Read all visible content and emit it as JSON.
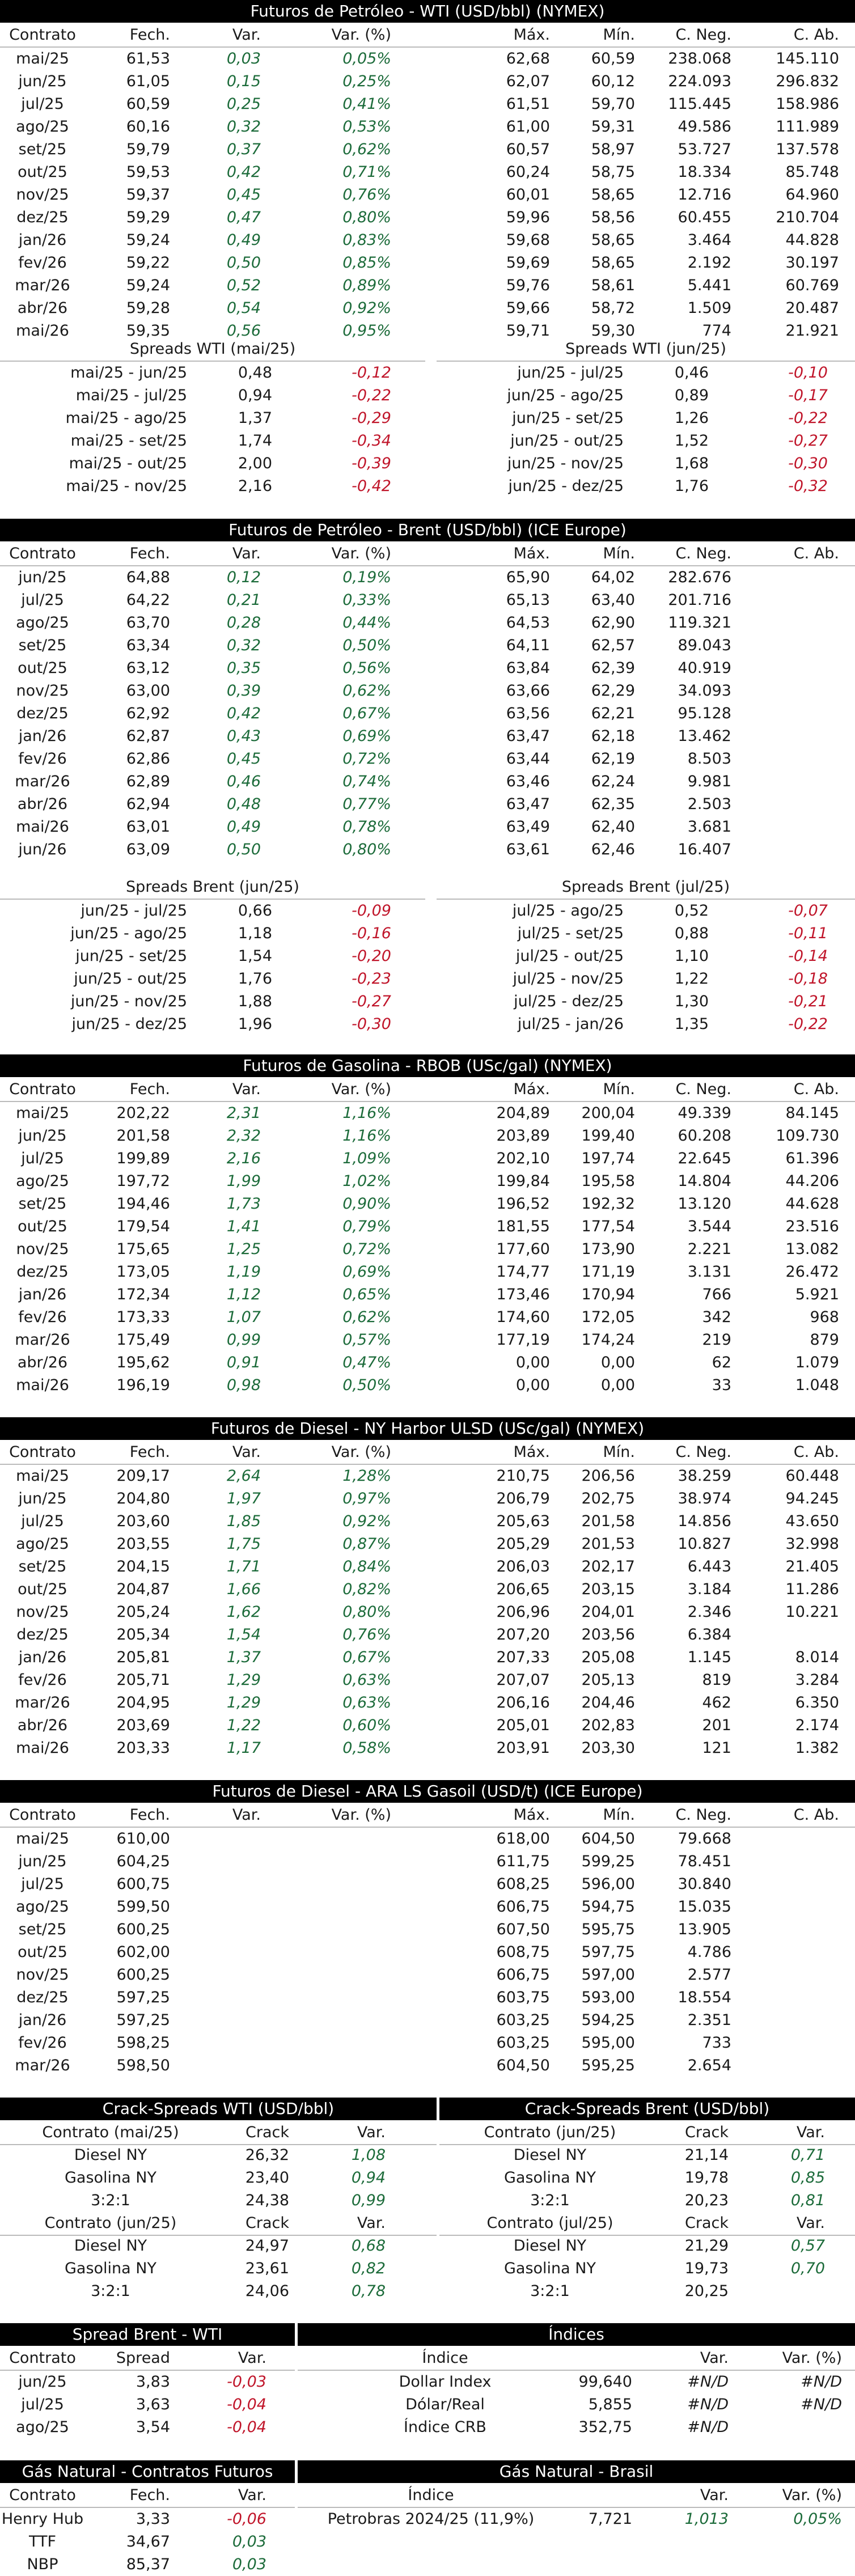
{
  "wti": {
    "title": "Futuros de Petróleo - WTI (USD/bbl) (NYMEX)",
    "headers": [
      "Contrato",
      "Fech.",
      "Var.",
      "Var. (%)",
      "Máx.",
      "Mín.",
      "C. Neg.",
      "C. Ab."
    ],
    "rows": [
      [
        "mai/25",
        "61,53",
        "0,03",
        "0,05%",
        "62,68",
        "60,59",
        "238.068",
        "145.110"
      ],
      [
        "jun/25",
        "61,05",
        "0,15",
        "0,25%",
        "62,07",
        "60,12",
        "224.093",
        "296.832"
      ],
      [
        "jul/25",
        "60,59",
        "0,25",
        "0,41%",
        "61,51",
        "59,70",
        "115.445",
        "158.986"
      ],
      [
        "ago/25",
        "60,16",
        "0,32",
        "0,53%",
        "61,00",
        "59,31",
        "49.586",
        "111.989"
      ],
      [
        "set/25",
        "59,79",
        "0,37",
        "0,62%",
        "60,57",
        "58,97",
        "53.727",
        "137.578"
      ],
      [
        "out/25",
        "59,53",
        "0,42",
        "0,71%",
        "60,24",
        "58,75",
        "18.334",
        "85.748"
      ],
      [
        "nov/25",
        "59,37",
        "0,45",
        "0,76%",
        "60,01",
        "58,65",
        "12.716",
        "64.960"
      ],
      [
        "dez/25",
        "59,29",
        "0,47",
        "0,80%",
        "59,96",
        "58,56",
        "60.455",
        "210.704"
      ],
      [
        "jan/26",
        "59,24",
        "0,49",
        "0,83%",
        "59,68",
        "58,65",
        "3.464",
        "44.828"
      ],
      [
        "fev/26",
        "59,22",
        "0,50",
        "0,85%",
        "59,69",
        "58,65",
        "2.192",
        "30.197"
      ],
      [
        "mar/26",
        "59,24",
        "0,52",
        "0,89%",
        "59,76",
        "58,61",
        "5.441",
        "60.769"
      ],
      [
        "abr/26",
        "59,28",
        "0,54",
        "0,92%",
        "59,66",
        "58,72",
        "1.509",
        "20.487"
      ],
      [
        "mai/26",
        "59,35",
        "0,56",
        "0,95%",
        "59,71",
        "59,30",
        "774",
        "21.921"
      ]
    ],
    "spreads_left_title": "Spreads WTI (mai/25)",
    "spreads_right_title": "Spreads WTI (jun/25)",
    "spreads_left": [
      [
        "mai/25 - jun/25",
        "0,48",
        "-0,12"
      ],
      [
        "mai/25 - jul/25",
        "0,94",
        "-0,22"
      ],
      [
        "mai/25 - ago/25",
        "1,37",
        "-0,29"
      ],
      [
        "mai/25 - set/25",
        "1,74",
        "-0,34"
      ],
      [
        "mai/25 - out/25",
        "2,00",
        "-0,39"
      ],
      [
        "mai/25 - nov/25",
        "2,16",
        "-0,42"
      ]
    ],
    "spreads_right": [
      [
        "jun/25 - jul/25",
        "0,46",
        "-0,10"
      ],
      [
        "jun/25 - ago/25",
        "0,89",
        "-0,17"
      ],
      [
        "jun/25 - set/25",
        "1,26",
        "-0,22"
      ],
      [
        "jun/25 - out/25",
        "1,52",
        "-0,27"
      ],
      [
        "jun/25 - nov/25",
        "1,68",
        "-0,30"
      ],
      [
        "jun/25 - dez/25",
        "1,76",
        "-0,32"
      ]
    ]
  },
  "brent": {
    "title": "Futuros de Petróleo - Brent (USD/bbl) (ICE Europe)",
    "headers": [
      "Contrato",
      "Fech.",
      "Var.",
      "Var. (%)",
      "Máx.",
      "Mín.",
      "C. Neg.",
      "C. Ab."
    ],
    "rows": [
      [
        "jun/25",
        "64,88",
        "0,12",
        "0,19%",
        "65,90",
        "64,02",
        "282.676",
        ""
      ],
      [
        "jul/25",
        "64,22",
        "0,21",
        "0,33%",
        "65,13",
        "63,40",
        "201.716",
        ""
      ],
      [
        "ago/25",
        "63,70",
        "0,28",
        "0,44%",
        "64,53",
        "62,90",
        "119.321",
        ""
      ],
      [
        "set/25",
        "63,34",
        "0,32",
        "0,50%",
        "64,11",
        "62,57",
        "89.043",
        ""
      ],
      [
        "out/25",
        "63,12",
        "0,35",
        "0,56%",
        "63,84",
        "62,39",
        "40.919",
        ""
      ],
      [
        "nov/25",
        "63,00",
        "0,39",
        "0,62%",
        "63,66",
        "62,29",
        "34.093",
        ""
      ],
      [
        "dez/25",
        "62,92",
        "0,42",
        "0,67%",
        "63,56",
        "62,21",
        "95.128",
        ""
      ],
      [
        "jan/26",
        "62,87",
        "0,43",
        "0,69%",
        "63,47",
        "62,18",
        "13.462",
        ""
      ],
      [
        "fev/26",
        "62,86",
        "0,45",
        "0,72%",
        "63,44",
        "62,19",
        "8.503",
        ""
      ],
      [
        "mar/26",
        "62,89",
        "0,46",
        "0,74%",
        "63,46",
        "62,24",
        "9.981",
        ""
      ],
      [
        "abr/26",
        "62,94",
        "0,48",
        "0,77%",
        "63,47",
        "62,35",
        "2.503",
        ""
      ],
      [
        "mai/26",
        "63,01",
        "0,49",
        "0,78%",
        "63,49",
        "62,40",
        "3.681",
        ""
      ],
      [
        "jun/26",
        "63,09",
        "0,50",
        "0,80%",
        "63,61",
        "62,46",
        "16.407",
        ""
      ]
    ],
    "spreads_left_title": "Spreads Brent (jun/25)",
    "spreads_right_title": "Spreads Brent (jul/25)",
    "spreads_left": [
      [
        "jun/25 - jul/25",
        "0,66",
        "-0,09"
      ],
      [
        "jun/25 - ago/25",
        "1,18",
        "-0,16"
      ],
      [
        "jun/25 - set/25",
        "1,54",
        "-0,20"
      ],
      [
        "jun/25 - out/25",
        "1,76",
        "-0,23"
      ],
      [
        "jun/25 - nov/25",
        "1,88",
        "-0,27"
      ],
      [
        "jun/25 - dez/25",
        "1,96",
        "-0,30"
      ]
    ],
    "spreads_right": [
      [
        "jul/25 - ago/25",
        "0,52",
        "-0,07"
      ],
      [
        "jul/25 - set/25",
        "0,88",
        "-0,11"
      ],
      [
        "jul/25 - out/25",
        "1,10",
        "-0,14"
      ],
      [
        "jul/25 - nov/25",
        "1,22",
        "-0,18"
      ],
      [
        "jul/25 - dez/25",
        "1,30",
        "-0,21"
      ],
      [
        "jul/25 - jan/26",
        "1,35",
        "-0,22"
      ]
    ]
  },
  "rbob": {
    "title": "Futuros de Gasolina - RBOB (USc/gal) (NYMEX)",
    "headers": [
      "Contrato",
      "Fech.",
      "Var.",
      "Var. (%)",
      "Máx.",
      "Mín.",
      "C. Neg.",
      "C. Ab."
    ],
    "rows": [
      [
        "mai/25",
        "202,22",
        "2,31",
        "1,16%",
        "204,89",
        "200,04",
        "49.339",
        "84.145"
      ],
      [
        "jun/25",
        "201,58",
        "2,32",
        "1,16%",
        "203,89",
        "199,40",
        "60.208",
        "109.730"
      ],
      [
        "jul/25",
        "199,89",
        "2,16",
        "1,09%",
        "202,10",
        "197,74",
        "22.645",
        "61.396"
      ],
      [
        "ago/25",
        "197,72",
        "1,99",
        "1,02%",
        "199,84",
        "195,58",
        "14.804",
        "44.206"
      ],
      [
        "set/25",
        "194,46",
        "1,73",
        "0,90%",
        "196,52",
        "192,32",
        "13.120",
        "44.628"
      ],
      [
        "out/25",
        "179,54",
        "1,41",
        "0,79%",
        "181,55",
        "177,54",
        "3.544",
        "23.516"
      ],
      [
        "nov/25",
        "175,65",
        "1,25",
        "0,72%",
        "177,60",
        "173,90",
        "2.221",
        "13.082"
      ],
      [
        "dez/25",
        "173,05",
        "1,19",
        "0,69%",
        "174,77",
        "171,19",
        "3.131",
        "26.472"
      ],
      [
        "jan/26",
        "172,34",
        "1,12",
        "0,65%",
        "173,46",
        "170,94",
        "766",
        "5.921"
      ],
      [
        "fev/26",
        "173,33",
        "1,07",
        "0,62%",
        "174,60",
        "172,05",
        "342",
        "968"
      ],
      [
        "mar/26",
        "175,49",
        "0,99",
        "0,57%",
        "177,19",
        "174,24",
        "219",
        "879"
      ],
      [
        "abr/26",
        "195,62",
        "0,91",
        "0,47%",
        "0,00",
        "0,00",
        "62",
        "1.079"
      ],
      [
        "mai/26",
        "196,19",
        "0,98",
        "0,50%",
        "0,00",
        "0,00",
        "33",
        "1.048"
      ]
    ]
  },
  "ulsd": {
    "title": "Futuros de Diesel - NY Harbor ULSD (USc/gal) (NYMEX)",
    "headers": [
      "Contrato",
      "Fech.",
      "Var.",
      "Var. (%)",
      "Máx.",
      "Mín.",
      "C. Neg.",
      "C. Ab."
    ],
    "rows": [
      [
        "mai/25",
        "209,17",
        "2,64",
        "1,28%",
        "210,75",
        "206,56",
        "38.259",
        "60.448"
      ],
      [
        "jun/25",
        "204,80",
        "1,97",
        "0,97%",
        "206,79",
        "202,75",
        "38.974",
        "94.245"
      ],
      [
        "jul/25",
        "203,60",
        "1,85",
        "0,92%",
        "205,63",
        "201,58",
        "14.856",
        "43.650"
      ],
      [
        "ago/25",
        "203,55",
        "1,75",
        "0,87%",
        "205,29",
        "201,53",
        "10.827",
        "32.998"
      ],
      [
        "set/25",
        "204,15",
        "1,71",
        "0,84%",
        "206,03",
        "202,17",
        "6.443",
        "21.405"
      ],
      [
        "out/25",
        "204,87",
        "1,66",
        "0,82%",
        "206,65",
        "203,15",
        "3.184",
        "11.286"
      ],
      [
        "nov/25",
        "205,24",
        "1,62",
        "0,80%",
        "206,96",
        "204,01",
        "2.346",
        "10.221"
      ],
      [
        "dez/25",
        "205,34",
        "1,54",
        "0,76%",
        "207,20",
        "203,56",
        "6.384",
        ""
      ],
      [
        "jan/26",
        "205,81",
        "1,37",
        "0,67%",
        "207,33",
        "205,08",
        "1.145",
        "8.014"
      ],
      [
        "fev/26",
        "205,71",
        "1,29",
        "0,63%",
        "207,07",
        "205,13",
        "819",
        "3.284"
      ],
      [
        "mar/26",
        "204,95",
        "1,29",
        "0,63%",
        "206,16",
        "204,46",
        "462",
        "6.350"
      ],
      [
        "abr/26",
        "203,69",
        "1,22",
        "0,60%",
        "205,01",
        "202,83",
        "201",
        "2.174"
      ],
      [
        "mai/26",
        "203,33",
        "1,17",
        "0,58%",
        "203,91",
        "203,30",
        "121",
        "1.382"
      ]
    ]
  },
  "gasoil": {
    "title": "Futuros de Diesel - ARA LS Gasoil (USD/t) (ICE Europe)",
    "headers": [
      "Contrato",
      "Fech.",
      "Var.",
      "Var. (%)",
      "Máx.",
      "Mín.",
      "C. Neg.",
      "C. Ab."
    ],
    "rows": [
      [
        "mai/25",
        "610,00",
        "",
        "",
        "618,00",
        "604,50",
        "79.668",
        ""
      ],
      [
        "jun/25",
        "604,25",
        "",
        "",
        "611,75",
        "599,25",
        "78.451",
        ""
      ],
      [
        "jul/25",
        "600,75",
        "",
        "",
        "608,25",
        "596,00",
        "30.840",
        ""
      ],
      [
        "ago/25",
        "599,50",
        "",
        "",
        "606,75",
        "594,75",
        "15.035",
        ""
      ],
      [
        "set/25",
        "600,25",
        "",
        "",
        "607,50",
        "595,75",
        "13.905",
        ""
      ],
      [
        "out/25",
        "602,00",
        "",
        "",
        "608,75",
        "597,75",
        "4.786",
        ""
      ],
      [
        "nov/25",
        "600,25",
        "",
        "",
        "606,75",
        "597,00",
        "2.577",
        ""
      ],
      [
        "dez/25",
        "597,25",
        "",
        "",
        "603,75",
        "593,00",
        "18.554",
        ""
      ],
      [
        "jan/26",
        "597,25",
        "",
        "",
        "603,25",
        "594,25",
        "2.351",
        ""
      ],
      [
        "fev/26",
        "598,25",
        "",
        "",
        "603,25",
        "595,00",
        "733",
        ""
      ],
      [
        "mar/26",
        "598,50",
        "",
        "",
        "604,50",
        "595,25",
        "2.654",
        ""
      ]
    ]
  },
  "crack": {
    "wti_title": "Crack-Spreads WTI (USD/bbl)",
    "brent_title": "Crack-Spreads Brent (USD/bbl)",
    "wti_blocks": [
      {
        "h": [
          "Contrato (mai/25)",
          "Crack",
          "Var."
        ],
        "rows": [
          [
            "Diesel NY",
            "26,32",
            "1,08"
          ],
          [
            "Gasolina NY",
            "23,40",
            "0,94"
          ],
          [
            "3:2:1",
            "24,38",
            "0,99"
          ]
        ]
      },
      {
        "h": [
          "Contrato (jun/25)",
          "Crack",
          "Var."
        ],
        "rows": [
          [
            "Diesel NY",
            "24,97",
            "0,68"
          ],
          [
            "Gasolina NY",
            "23,61",
            "0,82"
          ],
          [
            "3:2:1",
            "24,06",
            "0,78"
          ]
        ]
      }
    ],
    "brent_blocks": [
      {
        "h": [
          "Contrato (jun/25)",
          "Crack",
          "Var."
        ],
        "rows": [
          [
            "Diesel NY",
            "21,14",
            "0,71"
          ],
          [
            "Gasolina NY",
            "19,78",
            "0,85"
          ],
          [
            "3:2:1",
            "20,23",
            "0,81"
          ]
        ]
      },
      {
        "h": [
          "Contrato (jul/25)",
          "Crack",
          "Var."
        ],
        "rows": [
          [
            "Diesel NY",
            "21,29",
            "0,57"
          ],
          [
            "Gasolina NY",
            "19,73",
            "0,70"
          ],
          [
            "3:2:1",
            "20,25",
            ""
          ]
        ]
      }
    ]
  },
  "spread_bw": {
    "title": "Spread Brent - WTI",
    "headers": [
      "Contrato",
      "Spread",
      "Var."
    ],
    "rows": [
      [
        "jun/25",
        "3,83",
        "-0,03"
      ],
      [
        "jul/25",
        "3,63",
        "-0,04"
      ],
      [
        "ago/25",
        "3,54",
        "-0,04"
      ]
    ]
  },
  "indices": {
    "title": "Índices",
    "headers": [
      "Índice",
      "",
      "Var.",
      "Var. (%)"
    ],
    "rows": [
      [
        "Dollar Index",
        "99,640",
        "#N/D",
        "#N/D"
      ],
      [
        "Dólar/Real",
        "5,855",
        "#N/D",
        "#N/D"
      ],
      [
        "Índice CRB",
        "352,75",
        "#N/D",
        ""
      ]
    ]
  },
  "gas_futures": {
    "title": "Gás Natural - Contratos Futuros",
    "headers": [
      "Contrato",
      "Fech.",
      "Var."
    ],
    "rows": [
      [
        "Henry Hub",
        "3,33",
        "-0,06"
      ],
      [
        "TTF",
        "34,67",
        "0,03"
      ],
      [
        "NBP",
        "85,37",
        "0,03"
      ]
    ]
  },
  "gas_brasil": {
    "title": "Gás Natural - Brasil",
    "headers": [
      "Índice",
      "",
      "Var.",
      "Var. (%)"
    ],
    "rows": [
      [
        "Petrobras 2024/25 (11,9%)",
        "7,721",
        "1,013",
        "0,05%"
      ]
    ]
  }
}
